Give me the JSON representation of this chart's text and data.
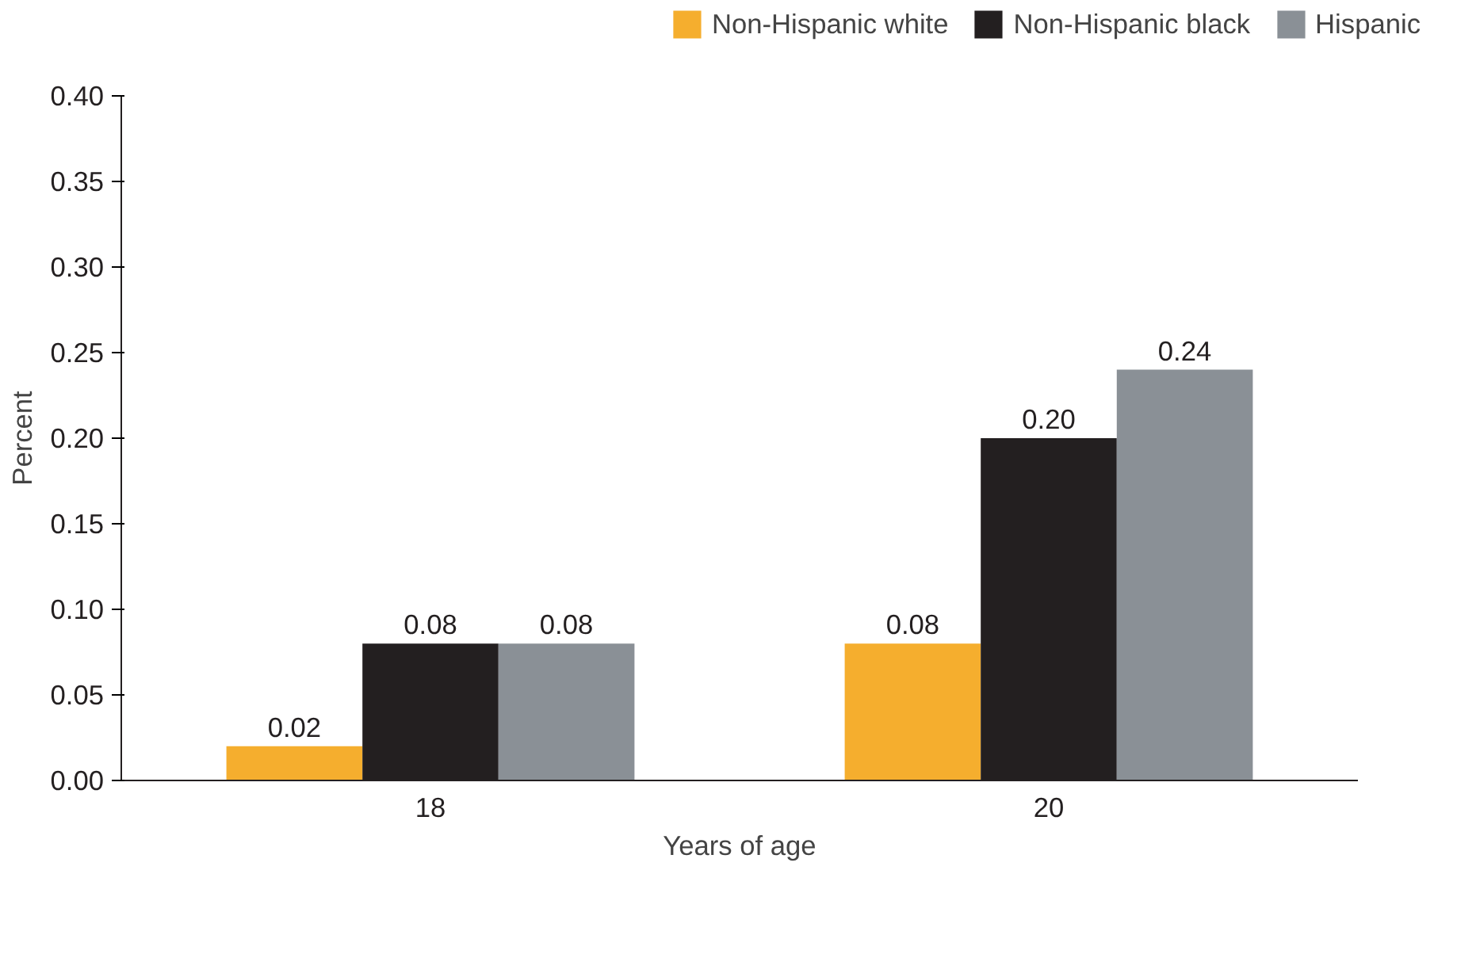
{
  "chart_data": {
    "type": "bar",
    "xlabel": "Years of age",
    "ylabel": "Percent",
    "categories": [
      "18",
      "20"
    ],
    "series": [
      {
        "name": "Non-Hispanic white",
        "color": "#f5ae2e",
        "values": [
          0.02,
          0.08
        ],
        "value_labels": [
          "0.02",
          "0.08"
        ]
      },
      {
        "name": "Non-Hispanic black",
        "color": "#231f20",
        "values": [
          0.08,
          0.2
        ],
        "value_labels": [
          "0.08",
          "0.20"
        ]
      },
      {
        "name": "Hispanic",
        "color": "#8a9096",
        "values": [
          0.08,
          0.24
        ],
        "value_labels": [
          "0.08",
          "0.24"
        ]
      }
    ],
    "ylim": [
      0,
      0.4
    ],
    "yticks": [
      {
        "value": 0,
        "label": "0.00"
      },
      {
        "value": 0.05,
        "label": "0.05"
      },
      {
        "value": 0.1,
        "label": "0.10"
      },
      {
        "value": 0.15,
        "label": "0.15"
      },
      {
        "value": 0.2,
        "label": "0.20"
      },
      {
        "value": 0.25,
        "label": "0.25"
      },
      {
        "value": 0.3,
        "label": "0.30"
      },
      {
        "value": 0.35,
        "label": "0.35"
      },
      {
        "value": 0.4,
        "label": "0.40"
      }
    ],
    "grid": false,
    "legend": "top right"
  }
}
